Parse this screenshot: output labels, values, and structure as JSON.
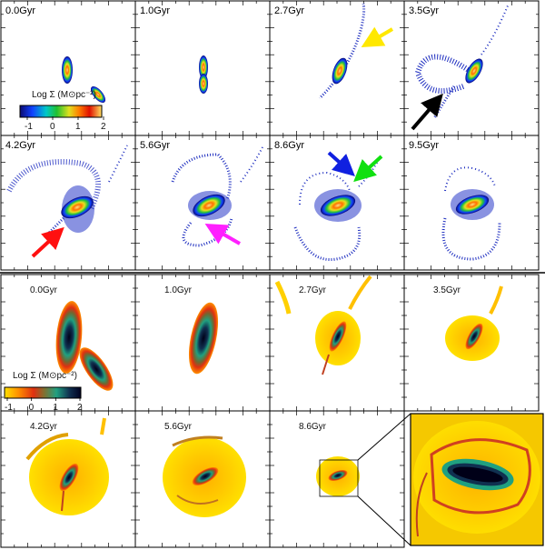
{
  "top_panels": [
    {
      "label": "0.0Gyr"
    },
    {
      "label": "1.0Gyr"
    },
    {
      "label": "2.7Gyr"
    },
    {
      "label": "3.5Gyr"
    },
    {
      "label": "4.2Gyr"
    },
    {
      "label": "5.6Gyr"
    },
    {
      "label": "8.6Gyr"
    },
    {
      "label": "9.5Gyr"
    }
  ],
  "bottom_panels": [
    {
      "label": "0.0Gyr"
    },
    {
      "label": "1.0Gyr"
    },
    {
      "label": "2.7Gyr"
    },
    {
      "label": "3.5Gyr"
    },
    {
      "label": "4.2Gyr"
    },
    {
      "label": "5.6Gyr"
    },
    {
      "label": "8.6Gyr"
    }
  ],
  "colorbar_top": {
    "title": "Log Σ (M⊙pc⁻²)",
    "ticks": [
      "-1",
      "0",
      "1",
      "2"
    ],
    "colors": [
      "#0a0a70",
      "#1040ff",
      "#00c8c8",
      "#20c030",
      "#e0e020",
      "#ff8000",
      "#e01000",
      "#ffe060"
    ]
  },
  "colorbar_bottom": {
    "title": "Log Σ (M⊙pc⁻²)",
    "ticks": [
      "-1",
      "0",
      "1",
      "2"
    ],
    "colors": [
      "#ffe000",
      "#ff9000",
      "#e03010",
      "#807030",
      "#20a080",
      "#103050",
      "#000020"
    ]
  },
  "arrows": [
    {
      "name": "yellow-arrow",
      "color": "#ffe800"
    },
    {
      "name": "black-arrow",
      "color": "#000000"
    },
    {
      "name": "red-arrow",
      "color": "#ff1010"
    },
    {
      "name": "magenta-arrow",
      "color": "#ff20ff"
    },
    {
      "name": "blue-arrow",
      "color": "#1020e0"
    },
    {
      "name": "green-arrow",
      "color": "#10e010"
    }
  ]
}
